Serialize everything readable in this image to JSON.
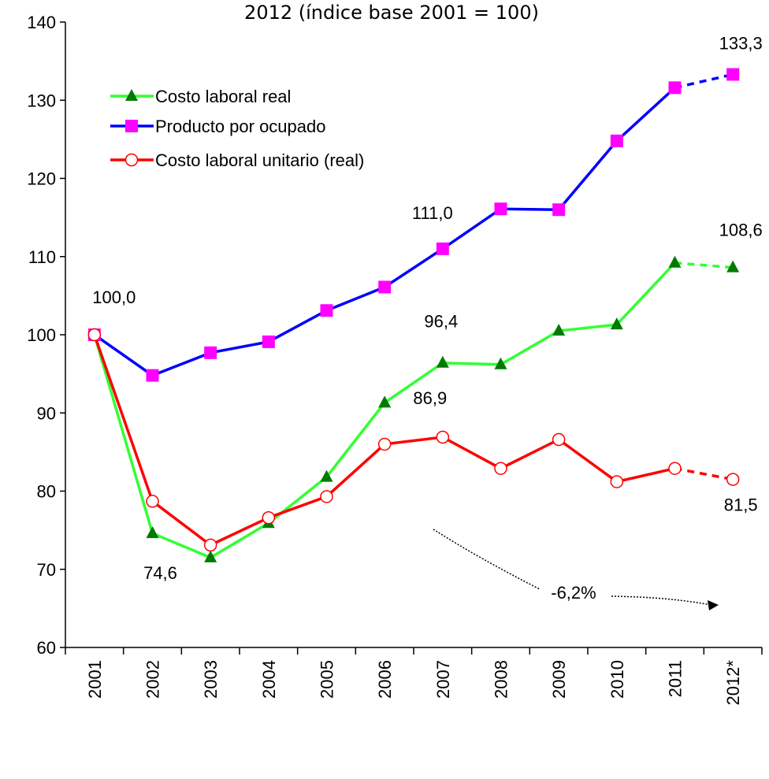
{
  "chart_data": {
    "type": "line",
    "title": "2012 (índice base 2001 = 100)",
    "categories": [
      "2001",
      "2002",
      "2003",
      "2004",
      "2005",
      "2006",
      "2007",
      "2008",
      "2009",
      "2010",
      "2011",
      "2012*"
    ],
    "series": [
      {
        "name": "Costo laboral real",
        "color": "#33ff33",
        "marker_color": "#007a00",
        "marker": "triangle",
        "values": [
          100.0,
          74.6,
          71.5,
          75.9,
          81.8,
          91.3,
          96.4,
          96.2,
          100.5,
          101.3,
          109.2,
          108.6
        ],
        "value_labels": [
          null,
          "74,6",
          null,
          null,
          null,
          null,
          "96,4",
          null,
          null,
          null,
          null,
          "108,6"
        ]
      },
      {
        "name": "Producto por ocupado",
        "color": "#0000ff",
        "marker_color": "#ff00ff",
        "marker": "square",
        "values": [
          100.0,
          94.8,
          97.7,
          99.1,
          103.1,
          106.1,
          111.0,
          116.1,
          116.0,
          124.8,
          131.6,
          133.3
        ],
        "value_labels": [
          "100,0",
          null,
          null,
          null,
          null,
          null,
          "111,0",
          null,
          null,
          null,
          null,
          "133,3"
        ]
      },
      {
        "name": "Costo laboral unitario (real)",
        "color": "#ff0000",
        "marker_color": "#ffffff",
        "marker": "circle",
        "values": [
          100.0,
          78.7,
          73.1,
          76.6,
          79.3,
          86.0,
          86.9,
          82.9,
          86.6,
          81.2,
          82.9,
          81.5
        ],
        "value_labels": [
          null,
          null,
          null,
          null,
          null,
          null,
          "86,9",
          null,
          null,
          null,
          null,
          "81,5"
        ]
      }
    ],
    "annotations": [
      "-6,2%"
    ],
    "ylim": [
      60,
      140
    ],
    "yticks": [
      60,
      70,
      80,
      90,
      100,
      110,
      120,
      130,
      140
    ],
    "grid": false,
    "legend": "upper left"
  }
}
